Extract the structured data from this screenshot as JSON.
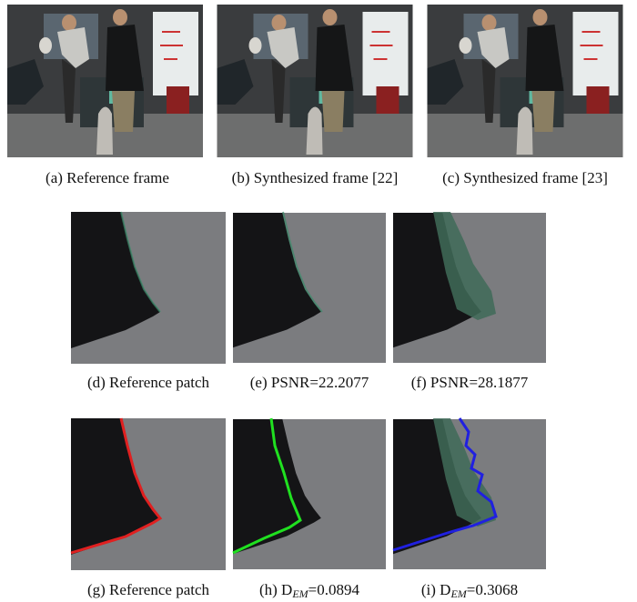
{
  "figure": {
    "row1": [
      "(a) Reference frame",
      "(b) Synthesized frame [22]",
      "(c) Synthesized frame [23]"
    ],
    "row2": [
      "(d) Reference patch",
      "(e) PSNR=22.2077",
      "(f) PSNR=28.1877"
    ],
    "row3": [
      {
        "prefix": "(g) Reference patch"
      },
      {
        "prefix": "(h) D",
        "subscript": "EM",
        "suffix": "=0.0894"
      },
      {
        "prefix": "(i) D",
        "subscript": "EM",
        "suffix": "=0.3068"
      }
    ]
  }
}
